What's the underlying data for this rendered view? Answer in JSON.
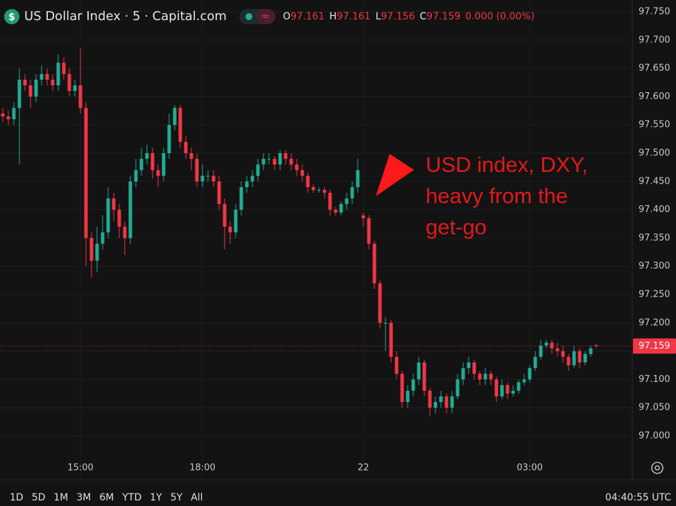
{
  "header": {
    "title": "US Dollar Index · 5 · Capital.com",
    "ohlc": [
      {
        "key": "O",
        "value": 97.161
      },
      {
        "key": "H",
        "value": 97.161
      },
      {
        "key": "L",
        "value": 97.156
      },
      {
        "key": "C",
        "value": 97.159
      }
    ],
    "change": "0.000 (0.00%)"
  },
  "chart_data": {
    "type": "candlestick",
    "up_color": "#22ab94",
    "down_color": "#f23645",
    "grid": true,
    "categories": [
      null,
      null,
      null,
      null,
      null,
      null,
      null,
      null,
      null,
      null,
      null,
      null,
      null,
      null,
      "15:00",
      null,
      null,
      null,
      null,
      null,
      null,
      null,
      null,
      null,
      null,
      null,
      null,
      null,
      null,
      null,
      null,
      null,
      null,
      null,
      null,
      null,
      "18:00",
      null,
      null,
      null,
      null,
      null,
      null,
      null,
      null,
      null,
      null,
      null,
      null,
      null,
      null,
      null,
      null,
      null,
      null,
      null,
      null,
      null,
      null,
      null,
      null,
      null,
      null,
      null,
      null,
      "22",
      null,
      null,
      null,
      null,
      null,
      null,
      null,
      null,
      null,
      null,
      null,
      null,
      null,
      null,
      null,
      null,
      null,
      null,
      null,
      null,
      null,
      null,
      null,
      null,
      null,
      null,
      null,
      null,
      null,
      "03:00",
      null,
      null,
      null,
      null,
      null,
      null,
      null,
      null,
      null,
      null,
      null,
      null
    ],
    "open": [
      97.57,
      97.565,
      97.56,
      97.58,
      97.63,
      97.62,
      97.6,
      97.63,
      97.64,
      97.63,
      97.62,
      97.66,
      97.64,
      97.61,
      97.62,
      97.58,
      97.35,
      97.31,
      97.34,
      97.36,
      97.42,
      97.4,
      97.37,
      97.35,
      97.45,
      97.47,
      97.49,
      97.5,
      97.47,
      97.46,
      97.5,
      97.55,
      97.58,
      97.52,
      97.5,
      97.49,
      97.45,
      97.46,
      97.46,
      97.45,
      97.41,
      97.37,
      97.36,
      97.4,
      97.44,
      97.45,
      97.46,
      97.48,
      97.49,
      97.49,
      97.48,
      97.5,
      97.49,
      97.48,
      97.47,
      97.46,
      97.44,
      97.435,
      97.435,
      97.43,
      97.4,
      97.395,
      97.41,
      97.42,
      97.44,
      97.39,
      97.385,
      97.34,
      97.27,
      97.2,
      97.2,
      97.14,
      97.11,
      97.06,
      97.08,
      97.1,
      97.13,
      97.08,
      97.05,
      97.06,
      97.07,
      97.05,
      97.07,
      97.1,
      97.12,
      97.13,
      97.11,
      97.1,
      97.11,
      97.1,
      97.07,
      97.09,
      97.075,
      97.08,
      97.095,
      97.1,
      97.12,
      97.14,
      97.16,
      97.165,
      97.155,
      97.15,
      97.14,
      97.125,
      97.15,
      97.13,
      97.145,
      97.161
    ],
    "high": [
      97.58,
      97.575,
      97.59,
      97.65,
      97.64,
      97.63,
      97.64,
      97.655,
      97.65,
      97.64,
      97.675,
      97.67,
      97.65,
      97.63,
      97.685,
      97.59,
      97.36,
      97.37,
      97.39,
      97.44,
      97.43,
      97.41,
      97.38,
      97.46,
      97.49,
      97.51,
      97.515,
      97.51,
      97.48,
      97.51,
      97.57,
      97.585,
      97.585,
      97.53,
      97.51,
      97.5,
      97.48,
      97.47,
      97.47,
      97.46,
      97.42,
      97.38,
      97.41,
      97.45,
      97.46,
      97.47,
      97.49,
      97.5,
      97.5,
      97.495,
      97.505,
      97.505,
      97.5,
      97.49,
      97.48,
      97.465,
      97.445,
      97.44,
      97.44,
      97.435,
      97.405,
      97.415,
      97.43,
      97.45,
      97.49,
      97.395,
      97.39,
      97.345,
      97.275,
      97.21,
      97.205,
      97.15,
      97.115,
      97.09,
      97.11,
      97.14,
      97.135,
      97.085,
      97.07,
      97.08,
      97.075,
      97.08,
      97.11,
      97.13,
      97.14,
      97.135,
      97.115,
      97.12,
      97.115,
      97.105,
      97.1,
      97.095,
      97.09,
      97.1,
      97.11,
      97.125,
      97.15,
      97.17,
      97.17,
      97.17,
      97.165,
      97.16,
      97.145,
      97.16,
      97.155,
      97.15,
      97.16,
      97.161
    ],
    "low": [
      97.555,
      97.55,
      97.55,
      97.48,
      97.61,
      97.58,
      97.59,
      97.62,
      97.62,
      97.61,
      97.61,
      97.63,
      97.6,
      97.6,
      97.57,
      97.3,
      97.28,
      97.29,
      97.33,
      97.35,
      97.38,
      97.35,
      97.32,
      97.34,
      97.44,
      97.46,
      97.48,
      97.455,
      97.44,
      97.45,
      97.49,
      97.54,
      97.51,
      97.49,
      97.47,
      97.44,
      97.44,
      97.45,
      97.44,
      97.4,
      97.33,
      97.34,
      97.35,
      97.39,
      97.43,
      97.44,
      97.45,
      97.47,
      97.48,
      97.47,
      97.47,
      97.48,
      97.47,
      97.46,
      97.45,
      97.43,
      97.43,
      97.43,
      97.42,
      97.39,
      97.39,
      97.39,
      97.4,
      97.41,
      97.43,
      97.37,
      97.33,
      97.26,
      97.19,
      97.15,
      97.13,
      97.1,
      97.05,
      97.05,
      97.07,
      97.09,
      97.07,
      97.035,
      97.04,
      97.05,
      97.04,
      97.04,
      97.065,
      97.09,
      97.11,
      97.1,
      97.09,
      97.09,
      97.09,
      97.06,
      97.065,
      97.065,
      97.07,
      97.075,
      97.09,
      97.095,
      97.115,
      97.135,
      97.155,
      97.145,
      97.14,
      97.13,
      97.115,
      97.12,
      97.12,
      97.125,
      97.14,
      97.156
    ],
    "close": [
      97.565,
      97.56,
      97.58,
      97.63,
      97.62,
      97.6,
      97.63,
      97.64,
      97.63,
      97.62,
      97.66,
      97.64,
      97.61,
      97.62,
      97.58,
      97.35,
      97.31,
      97.34,
      97.36,
      97.42,
      97.4,
      97.37,
      97.35,
      97.45,
      97.47,
      97.49,
      97.5,
      97.47,
      97.46,
      97.5,
      97.55,
      97.58,
      97.52,
      97.5,
      97.49,
      97.45,
      97.46,
      97.46,
      97.45,
      97.41,
      97.37,
      97.36,
      97.4,
      97.44,
      97.45,
      97.46,
      97.48,
      97.49,
      97.49,
      97.48,
      97.5,
      97.49,
      97.48,
      97.47,
      97.46,
      97.44,
      97.435,
      97.435,
      97.43,
      97.4,
      97.395,
      97.41,
      97.42,
      97.44,
      97.47,
      97.385,
      97.34,
      97.27,
      97.2,
      97.2,
      97.14,
      97.11,
      97.06,
      97.08,
      97.1,
      97.13,
      97.08,
      97.05,
      97.06,
      97.07,
      97.05,
      97.07,
      97.1,
      97.12,
      97.13,
      97.11,
      97.1,
      97.11,
      97.1,
      97.07,
      97.09,
      97.075,
      97.08,
      97.095,
      97.1,
      97.12,
      97.14,
      97.16,
      97.165,
      97.155,
      97.15,
      97.14,
      97.125,
      97.15,
      97.13,
      97.145,
      97.155,
      97.159
    ],
    "ylim": [
      97.0,
      97.75
    ],
    "yticks": [
      {
        "value": 97.0,
        "label": "97.000"
      },
      {
        "value": 97.05,
        "label": "97.050"
      },
      {
        "value": 97.1,
        "label": "97.100"
      },
      {
        "value": 97.15,
        "label": "97.150"
      },
      {
        "value": 97.2,
        "label": "97.200"
      },
      {
        "value": 97.25,
        "label": "97.250"
      },
      {
        "value": 97.3,
        "label": "97.300"
      },
      {
        "value": 97.35,
        "label": "97.350"
      },
      {
        "value": 97.4,
        "label": "97.400"
      },
      {
        "value": 97.45,
        "label": "97.450"
      },
      {
        "value": 97.5,
        "label": "97.500"
      },
      {
        "value": 97.55,
        "label": "97.550"
      },
      {
        "value": 97.6,
        "label": "97.600"
      },
      {
        "value": 97.65,
        "label": "97.650"
      },
      {
        "value": 97.7,
        "label": "97.700"
      },
      {
        "value": 97.75,
        "label": "97.750"
      }
    ],
    "last_price": {
      "value": 97.159,
      "label": "97.159"
    },
    "annotation": [
      "USD index, DXY,",
      "heavy from the",
      "get-go"
    ]
  },
  "toolbar": {
    "ranges": [
      "1D",
      "5D",
      "1M",
      "3M",
      "6M",
      "YTD",
      "1Y",
      "5Y",
      "All"
    ],
    "clock": "04:40:55 UTC"
  }
}
